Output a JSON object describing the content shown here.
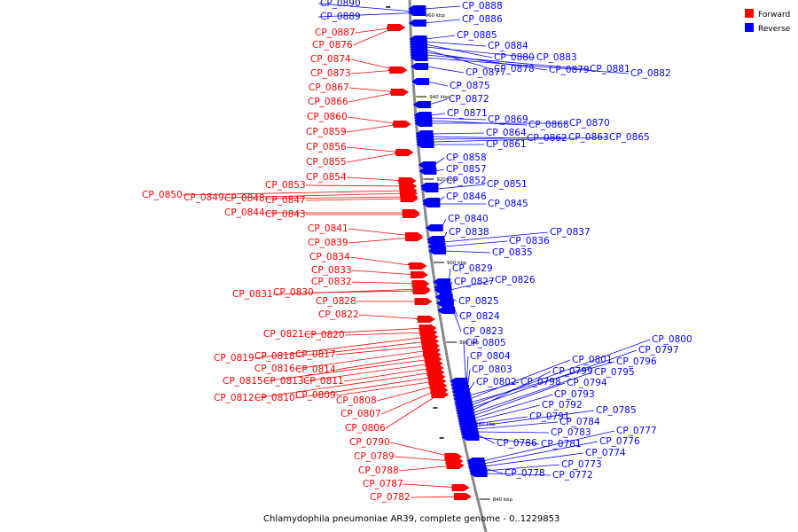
{
  "caption": "Chlamydophila pneumoniae AR39, complete genome - 0..1229853",
  "legend": [
    {
      "label": "Forward",
      "color": "#ff0000"
    },
    {
      "label": "Reverse",
      "color": "#0000ff"
    }
  ],
  "colors": {
    "forward": "#ff0000",
    "reverse": "#0000ff",
    "backbone": "#888888"
  },
  "ticks": [
    "960 kbp",
    "940 kbp",
    "920 kbp",
    "900 kbp",
    "880 kbp",
    "860 kbp",
    "840 kbp"
  ],
  "forward_genes": [
    "CP_0887",
    "CP_0876",
    "CP_0874",
    "CP_0873",
    "CP_0867",
    "CP_0866",
    "CP_0860",
    "CP_0859",
    "CP_0856",
    "CP_0855",
    "CP_0854",
    "CP_0853",
    "CP_0850",
    "CP_0849",
    "CP_0848",
    "CP_0847",
    "CP_0844",
    "CP_0843",
    "CP_0841",
    "CP_0839",
    "CP_0834",
    "CP_0833",
    "CP_0832",
    "CP_0831",
    "CP_0830",
    "CP_0828",
    "CP_0822",
    "CP_0821",
    "CP_0820",
    "CP_0819",
    "CP_0818",
    "CP_0817",
    "CP_0816",
    "CP_0814",
    "CP_0815",
    "CP_0813",
    "CP_0811",
    "CP_0812",
    "CP_0810",
    "CP_0809",
    "CP_0808",
    "CP_0807",
    "CP_0806",
    "CP_0790",
    "CP_0789",
    "CP_0788",
    "CP_0787",
    "CP_0782"
  ],
  "reverse_genes": [
    "CP_0890",
    "CP_0889",
    "CP_0888",
    "CP_0886",
    "CP_0885",
    "CP_0884",
    "CP_0880",
    "CP_0883",
    "CP_0878",
    "CP_0879",
    "CP_0881",
    "CP_0882",
    "CP_0877",
    "CP_0875",
    "CP_0872",
    "CP_0871",
    "CP_0869",
    "CP_0868",
    "CP_0870",
    "CP_0864",
    "CP_0862",
    "CP_0863",
    "CP_0865",
    "CP_0861",
    "CP_0858",
    "CP_0857",
    "CP_0852",
    "CP_0851",
    "CP_0846",
    "CP_0845",
    "CP_0840",
    "CP_0838",
    "CP_0837",
    "CP_0836",
    "CP_0835",
    "CP_0829",
    "CP_0827",
    "CP_0826",
    "CP_0825",
    "CP_0824",
    "CP_0823",
    "CP_0805",
    "CP_0804",
    "CP_0803",
    "CP_0802",
    "CP_0798",
    "CP_0801",
    "CP_0796",
    "CP_0800",
    "CP_0797",
    "CP_0799",
    "CP_0795",
    "CP_0794",
    "CP_0793",
    "CP_0792",
    "CP_0791",
    "CP_0785",
    "CP_0784",
    "CP_0783",
    "CP_0786",
    "CP_0781",
    "CP_0777",
    "CP_0776",
    "CP_0774",
    "CP_0778",
    "CP_0773",
    "CP_0772"
  ]
}
